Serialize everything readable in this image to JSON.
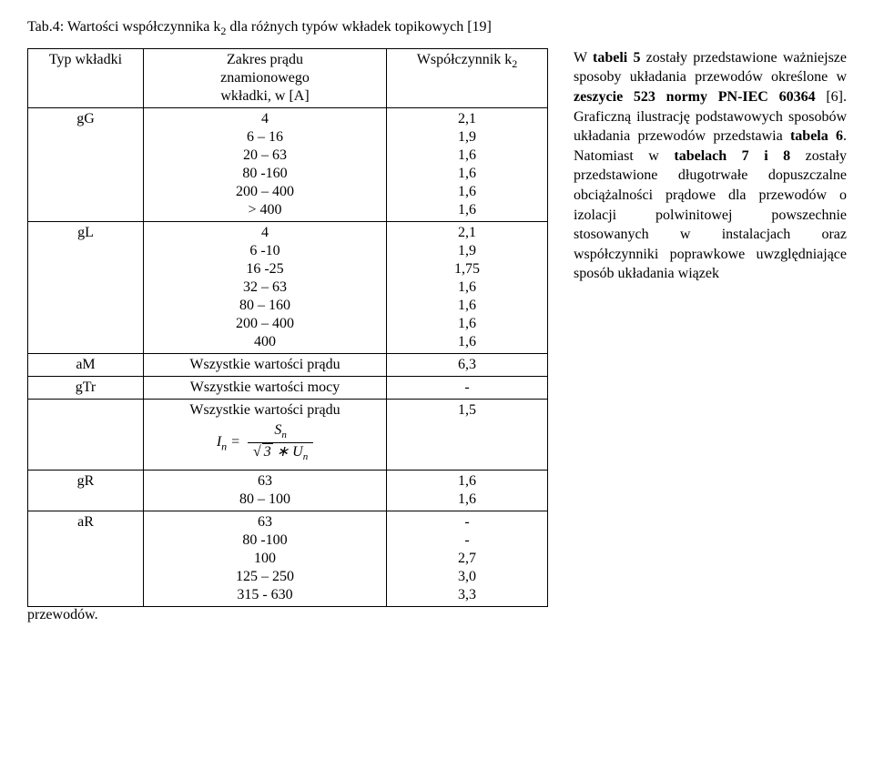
{
  "caption_prefix": "Tab.4",
  "caption_text": ": Wartości współczynnika k",
  "caption_sub": "2",
  "caption_rest": " dla różnych typów wkładek topikowych [19]",
  "headers": {
    "c1": "Typ wkładki",
    "c2_l1": "Zakres prądu",
    "c2_l2": "znamionowego",
    "c2_l3": "wkładki, w [A]",
    "c3_pre": "Współczynnik k",
    "c3_sub": "2"
  },
  "rows": [
    {
      "type": "gG",
      "range": [
        "4",
        "6 – 16",
        "20 – 63",
        "80 -160",
        "200 – 400",
        "> 400"
      ],
      "k2": [
        "2,1",
        "1,9",
        "1,6",
        "1,6",
        "1,6",
        "1,6"
      ]
    },
    {
      "type": "gL",
      "range": [
        "4",
        "6 -10",
        "16 -25",
        "32 – 63",
        "80 – 160",
        "200 – 400",
        "400"
      ],
      "k2": [
        "2,1",
        "1,9",
        "1,75",
        "1,6",
        "1,6",
        "1,6",
        "1,6"
      ]
    },
    {
      "type": "aM",
      "range": [
        "Wszystkie wartości prądu"
      ],
      "k2": [
        "6,3"
      ]
    },
    {
      "type": "gTr",
      "range": [
        "Wszystkie wartości mocy"
      ],
      "k2": [
        "-"
      ]
    },
    {
      "type": "",
      "range_special": "formula",
      "range_top": "Wszystkie wartości prądu",
      "k2": [
        "1,5"
      ]
    },
    {
      "type": "gR",
      "range": [
        "63",
        "80 – 100"
      ],
      "k2": [
        "1,6",
        "1,6"
      ]
    },
    {
      "type": "aR",
      "range": [
        "63",
        "80 -100",
        "100",
        "125 – 250",
        "315 - 630"
      ],
      "k2": [
        "-",
        "-",
        "2,7",
        "3,0",
        "3,3"
      ]
    }
  ],
  "side": {
    "p1a": "W ",
    "p1b": "tabeli 5",
    "p1c": " zostały przedstawione ważniejsze sposoby układania przewodów określone w ",
    "p1d": "zeszycie 523 normy PN-IEC 60364",
    "p1e": " [6]. Graficzną ilustrację podstawowych sposobów układania przewodów przedstawia ",
    "p1f": "tabela 6",
    "p1g": ". Natomiast w ",
    "p1h": "tabelach 7 i 8",
    "p1i": " zostały przedstawione długotrwałe dopuszczalne obciążalności prądowe dla przewodów o izolacji polwinitowej powszechnie stosowanych w instalacjach oraz współczynniki poprawkowe uwzględniające sposób układania wiązek"
  },
  "trailing": "przewodów."
}
